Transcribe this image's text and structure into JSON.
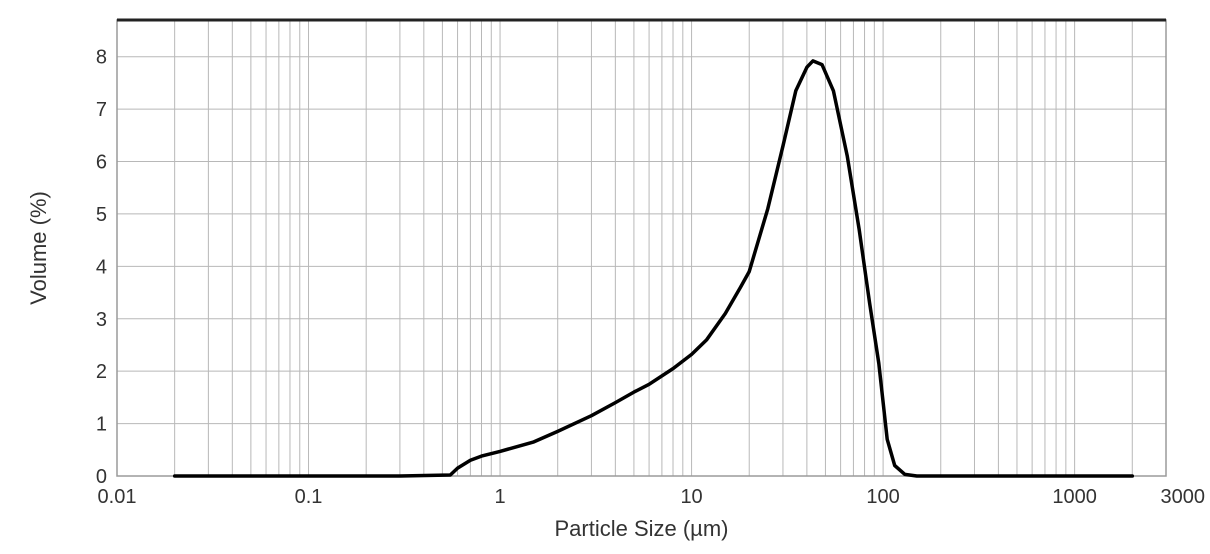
{
  "chart_data": {
    "type": "line",
    "title": "",
    "xlabel": "Particle Size (µm)",
    "ylabel": "Volume (%)",
    "xscale": "log",
    "xlim": [
      0.01,
      3000
    ],
    "ylim": [
      0,
      8.7
    ],
    "grid": true,
    "legend": "none",
    "x_tick_labels": [
      "0.01",
      "0.1",
      "1",
      "10",
      "100",
      "1000",
      "3000"
    ],
    "y_tick_labels": [
      "0",
      "1",
      "2",
      "3",
      "4",
      "5",
      "6",
      "7",
      "8"
    ],
    "series": [
      {
        "color": "#000000",
        "points": [
          [
            0.02,
            0
          ],
          [
            0.1,
            0
          ],
          [
            0.3,
            0
          ],
          [
            0.55,
            0.02
          ],
          [
            0.6,
            0.15
          ],
          [
            0.7,
            0.3
          ],
          [
            0.8,
            0.38
          ],
          [
            1.0,
            0.47
          ],
          [
            1.5,
            0.65
          ],
          [
            2.0,
            0.85
          ],
          [
            3.0,
            1.15
          ],
          [
            4.0,
            1.4
          ],
          [
            5.0,
            1.6
          ],
          [
            6.0,
            1.75
          ],
          [
            8.0,
            2.05
          ],
          [
            10.0,
            2.32
          ],
          [
            12.0,
            2.6
          ],
          [
            15.0,
            3.1
          ],
          [
            18.0,
            3.6
          ],
          [
            20.0,
            3.9
          ],
          [
            25.0,
            5.1
          ],
          [
            30.0,
            6.3
          ],
          [
            35.0,
            7.35
          ],
          [
            40.0,
            7.8
          ],
          [
            43.0,
            7.92
          ],
          [
            48.0,
            7.85
          ],
          [
            55.0,
            7.35
          ],
          [
            65.0,
            6.1
          ],
          [
            75.0,
            4.7
          ],
          [
            85.0,
            3.3
          ],
          [
            95.0,
            2.15
          ],
          [
            105.0,
            0.7
          ],
          [
            115.0,
            0.2
          ],
          [
            130.0,
            0.03
          ],
          [
            150.0,
            0
          ],
          [
            500.0,
            0
          ],
          [
            2000.0,
            0
          ]
        ]
      }
    ]
  }
}
